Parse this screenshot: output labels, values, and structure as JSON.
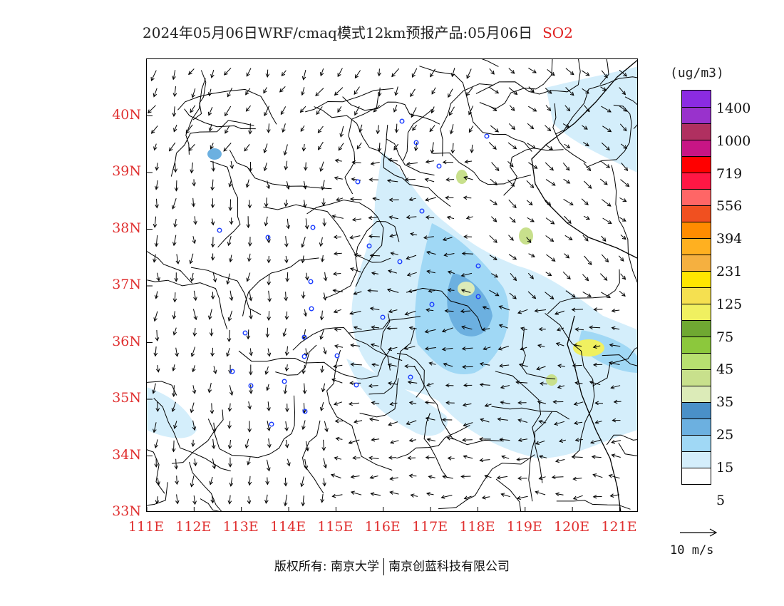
{
  "title": {
    "main": "2024年05月06日WRF/cmaq模式12km预报产品:05月06日",
    "variable": "SO2"
  },
  "map": {
    "lat_labels": [
      "40N",
      "39N",
      "38N",
      "37N",
      "36N",
      "35N",
      "34N",
      "33N"
    ],
    "lon_labels": [
      "111E",
      "112E",
      "113E",
      "114E",
      "115E",
      "116E",
      "117E",
      "118E",
      "119E",
      "120E",
      "121E"
    ],
    "lat_range": [
      33,
      41
    ],
    "lon_range": [
      111,
      121.4
    ],
    "background_color": "#ffffff",
    "boundary_color": "#000000"
  },
  "legend": {
    "unit": "(ug/m3)",
    "colors": [
      "#8b2be2",
      "#9932cc",
      "#b03060",
      "#c71585",
      "#ff0000",
      "#ff1744",
      "#ff6666",
      "#f05020",
      "#ff8c00",
      "#ffb020",
      "#f5b040",
      "#ffe600",
      "#f5e050",
      "#f0f060",
      "#6fa832",
      "#8cc83c",
      "#b8e070",
      "#c8e08c",
      "#dcebb8",
      "#4a90c8",
      "#6cb0e0",
      "#a0d8f5",
      "#d4eefb",
      "#ffffff"
    ],
    "labels": [
      "1400",
      "1000",
      "719",
      "556",
      "394",
      "231",
      "125",
      "75",
      "45",
      "35",
      "25",
      "15",
      "5"
    ]
  },
  "reference_wind": {
    "label": "10 m/s"
  },
  "footer": {
    "owner": "版权所有: 南京大学",
    "partner": "南京创蓝科技有限公司"
  }
}
